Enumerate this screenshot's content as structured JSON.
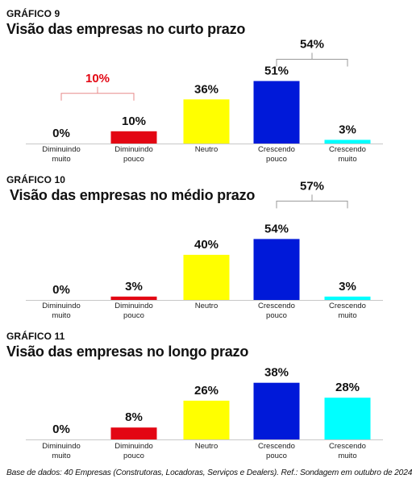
{
  "chart_data": [
    {
      "type": "bar",
      "label": "GRÁFICO 9",
      "title": "Visão das empresas no curto prazo",
      "categories": [
        [
          "Diminuindo",
          "muito"
        ],
        [
          "Diminuindo",
          "pouco"
        ],
        [
          "Neutro"
        ],
        [
          "Crescendo",
          "pouco"
        ],
        [
          "Crescendo",
          "muito"
        ]
      ],
      "values": [
        0,
        10,
        36,
        51,
        3
      ],
      "value_labels": [
        "0%",
        "10%",
        "36%",
        "51%",
        "3%"
      ],
      "colors": [
        "#cccccc",
        "#e30613",
        "#ffff00",
        "#0019d9",
        "#00ffff"
      ],
      "ylim": [
        0,
        60
      ],
      "brackets": [
        {
          "from": 0,
          "to": 1,
          "label": "10%",
          "color": "#e30613"
        },
        {
          "from": 3,
          "to": 4,
          "label": "54%",
          "color": "#777777"
        }
      ]
    },
    {
      "type": "bar",
      "label": "GRÁFICO 10",
      "title": "Visão das empresas no médio prazo",
      "categories": [
        [
          "Diminuindo",
          "muito"
        ],
        [
          "Diminuindo",
          "pouco"
        ],
        [
          "Neutro"
        ],
        [
          "Crescendo",
          "pouco"
        ],
        [
          "Crescendo",
          "muito"
        ]
      ],
      "values": [
        0,
        3,
        40,
        54,
        3
      ],
      "value_labels": [
        "0%",
        "3%",
        "40%",
        "54%",
        "3%"
      ],
      "colors": [
        "#cccccc",
        "#e30613",
        "#ffff00",
        "#0019d9",
        "#00ffff"
      ],
      "ylim": [
        0,
        60
      ],
      "brackets": [
        {
          "from": 3,
          "to": 4,
          "label": "57%",
          "color": "#777777"
        }
      ]
    },
    {
      "type": "bar",
      "label": "GRÁFICO 11",
      "title": "Visão das empresas no longo prazo",
      "categories": [
        [
          "Diminuindo",
          "muito"
        ],
        [
          "Diminuindo",
          "pouco"
        ],
        [
          "Neutro"
        ],
        [
          "Crescendo",
          "pouco"
        ],
        [
          "Crescendo",
          "muito"
        ]
      ],
      "values": [
        0,
        8,
        26,
        38,
        28
      ],
      "value_labels": [
        "0%",
        "8%",
        "26%",
        "38%",
        "28%"
      ],
      "colors": [
        "#cccccc",
        "#e30613",
        "#ffff00",
        "#0019d9",
        "#00ffff"
      ],
      "ylim": [
        0,
        45
      ],
      "brackets": []
    }
  ],
  "footer": "Base de dados: 40 Empresas (Construtoras, Locadoras, Serviços e Dealers). Ref.: Sondagem em outubro de 2024"
}
